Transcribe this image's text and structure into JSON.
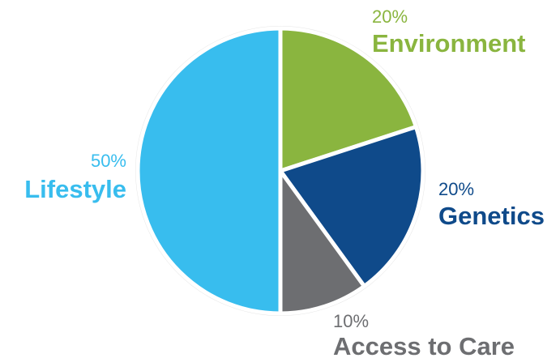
{
  "chart_data": {
    "type": "pie",
    "slices": [
      {
        "label": "Environment",
        "value": 20,
        "value_label": "20%",
        "color": "#8ab53f"
      },
      {
        "label": "Genetics",
        "value": 20,
        "value_label": "20%",
        "color": "#0f4a8a"
      },
      {
        "label": "Access to Care",
        "value": 10,
        "value_label": "10%",
        "color": "#6d6e71"
      },
      {
        "label": "Lifestyle",
        "value": 50,
        "value_label": "50%",
        "color": "#38bdee"
      }
    ],
    "start_angle_deg": 0,
    "direction": "clockwise",
    "legend": "none"
  }
}
